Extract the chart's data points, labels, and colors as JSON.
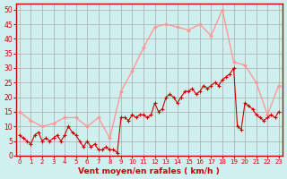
{
  "title": "",
  "xlabel": "Vent moyen/en rafales ( km/h )",
  "xlabel_color": "#cc0000",
  "bg_color": "#cff0ee",
  "grid_color": "#aaaaaa",
  "axis_color": "#cc0000",
  "tick_color": "#cc0000",
  "ylim": [
    0,
    52
  ],
  "yticks": [
    0,
    5,
    10,
    15,
    20,
    25,
    30,
    35,
    40,
    45,
    50
  ],
  "xticks": [
    0,
    1,
    2,
    3,
    4,
    5,
    6,
    7,
    8,
    9,
    10,
    11,
    12,
    13,
    14,
    15,
    16,
    17,
    18,
    19,
    20,
    21,
    22,
    23
  ],
  "mean_color": "#cc0000",
  "gust_color": "#ff9999",
  "mean_x": [
    0,
    0.33,
    0.67,
    1,
    1.33,
    1.67,
    2,
    2.33,
    2.67,
    3,
    3.33,
    3.67,
    4,
    4.33,
    4.67,
    5,
    5.33,
    5.67,
    6,
    6.33,
    6.67,
    7,
    7.33,
    7.67,
    8,
    8.33,
    8.67,
    9,
    9.33,
    9.67,
    10,
    10.33,
    10.67,
    11,
    11.33,
    11.67,
    12,
    12.33,
    12.67,
    13,
    13.33,
    13.67,
    14,
    14.33,
    14.67,
    15,
    15.33,
    15.67,
    16,
    16.33,
    16.67,
    17,
    17.33,
    17.67,
    18,
    18.33,
    18.67,
    19,
    19.33,
    19.67,
    20,
    20.33,
    20.67,
    21,
    21.33,
    21.67,
    22,
    22.33,
    22.67,
    23
  ],
  "mean_y": [
    7,
    6,
    5,
    4,
    7,
    8,
    5,
    6,
    5,
    6,
    7,
    5,
    7,
    10,
    8,
    7,
    5,
    3,
    5,
    3,
    4,
    2,
    2,
    3,
    2,
    2,
    1,
    13,
    13,
    12,
    14,
    13,
    14,
    14,
    13,
    14,
    18,
    15,
    16,
    20,
    21,
    20,
    18,
    20,
    22,
    22,
    23,
    21,
    22,
    24,
    23,
    24,
    25,
    24,
    26,
    27,
    28,
    30,
    10,
    9,
    18,
    17,
    16,
    14,
    13,
    12,
    13,
    14,
    13,
    15
  ],
  "gust_x": [
    0,
    1,
    2,
    3,
    4,
    5,
    6,
    7,
    8,
    9,
    10,
    11,
    12,
    13,
    14,
    15,
    16,
    17,
    18,
    19,
    20,
    21,
    22,
    23
  ],
  "gust_y": [
    15,
    12,
    10,
    11,
    13,
    13,
    10,
    13,
    6,
    22,
    29,
    37,
    44,
    45,
    44,
    43,
    45,
    41,
    50,
    32,
    31,
    25,
    14,
    24
  ]
}
